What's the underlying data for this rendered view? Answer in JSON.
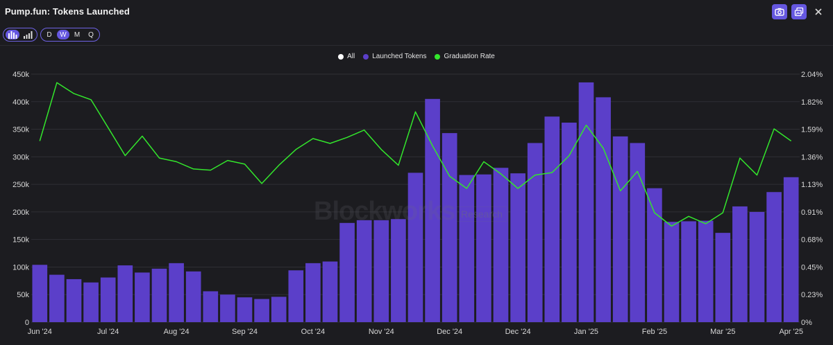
{
  "header": {
    "title": "Pump.fun: Tokens Launched"
  },
  "toolbar": {
    "chart_type_buttons": [
      {
        "name": "bar-chart-icon",
        "active": true
      },
      {
        "name": "stacked-bar-icon",
        "active": false
      }
    ],
    "timeframes": [
      {
        "label": "D",
        "active": false
      },
      {
        "label": "W",
        "active": true
      },
      {
        "label": "M",
        "active": false
      },
      {
        "label": "Q",
        "active": false
      }
    ]
  },
  "actions": [
    "camera-icon",
    "copy-image-icon",
    "close-icon"
  ],
  "legend": [
    {
      "label": "All",
      "color": "#ffffff"
    },
    {
      "label": "Launched Tokens",
      "color": "#5b3fc9"
    },
    {
      "label": "Graduation Rate",
      "color": "#33e62c"
    }
  ],
  "watermark": {
    "brand": "Blockworks",
    "sub": "Research"
  },
  "colors": {
    "bar": "#5b3fc9",
    "line": "#33e62c",
    "grid": "#2f2f35",
    "axis_text": "#d8d8d8"
  },
  "chart_data": {
    "type": "bar",
    "categories": [
      "Jun '24",
      "",
      "",
      "",
      "Jul '24",
      "",
      "",
      "",
      "Aug '24",
      "",
      "",
      "",
      "Sep '24",
      "",
      "",
      "",
      "Oct '24",
      "",
      "",
      "",
      "Nov '24",
      "",
      "",
      "",
      "Dec '24",
      "",
      "",
      "",
      "Dec '24",
      "",
      "",
      "",
      "Jan '25",
      "",
      "",
      "",
      "Feb '25",
      "",
      "",
      "",
      "Mar '25",
      "",
      "",
      "",
      "Apr '25"
    ],
    "x_tick_labels": [
      "Jun '24",
      "Jul '24",
      "Aug '24",
      "Sep '24",
      "Oct '24",
      "Nov '24",
      "Dec '24",
      "Dec '24",
      "Jan '25",
      "Feb '25",
      "Mar '25",
      "Apr '25"
    ],
    "series": [
      {
        "name": "Launched Tokens",
        "axis": "left",
        "kind": "bar",
        "values": [
          104000,
          86000,
          78000,
          72000,
          81000,
          103000,
          90000,
          97000,
          107000,
          92000,
          56000,
          50000,
          45000,
          42000,
          46000,
          94000,
          107000,
          110000,
          180000,
          185000,
          185000,
          187000,
          271000,
          405000,
          343000,
          267000,
          268000,
          280000,
          270000,
          325000,
          373000,
          362000,
          435000,
          408000,
          337000,
          325000,
          243000,
          182000,
          183000,
          184000,
          162000,
          210000,
          200000,
          236000,
          263000
        ]
      },
      {
        "name": "Graduation Rate",
        "axis": "right",
        "kind": "line",
        "values": [
          1.49,
          1.97,
          1.88,
          1.83,
          1.6,
          1.37,
          1.53,
          1.35,
          1.32,
          1.26,
          1.25,
          1.33,
          1.3,
          1.14,
          1.29,
          1.42,
          1.51,
          1.47,
          1.52,
          1.58,
          1.42,
          1.29,
          1.73,
          1.45,
          1.2,
          1.1,
          1.32,
          1.22,
          1.1,
          1.21,
          1.23,
          1.37,
          1.62,
          1.43,
          1.08,
          1.24,
          0.9,
          0.79,
          0.87,
          0.81,
          0.9,
          1.35,
          1.21,
          1.59,
          1.49
        ]
      }
    ],
    "y_left": {
      "min": 0,
      "max": 450000,
      "ticks": [
        "0",
        "50k",
        "100k",
        "150k",
        "200k",
        "250k",
        "300k",
        "350k",
        "400k",
        "450k"
      ]
    },
    "y_right": {
      "min": 0,
      "max": 2.04,
      "ticks": [
        "0%",
        "0.23%",
        "0.45%",
        "0.68%",
        "0.91%",
        "1.13%",
        "1.36%",
        "1.59%",
        "1.82%",
        "2.04%"
      ]
    },
    "grid": true,
    "legend_position": "top-center"
  }
}
